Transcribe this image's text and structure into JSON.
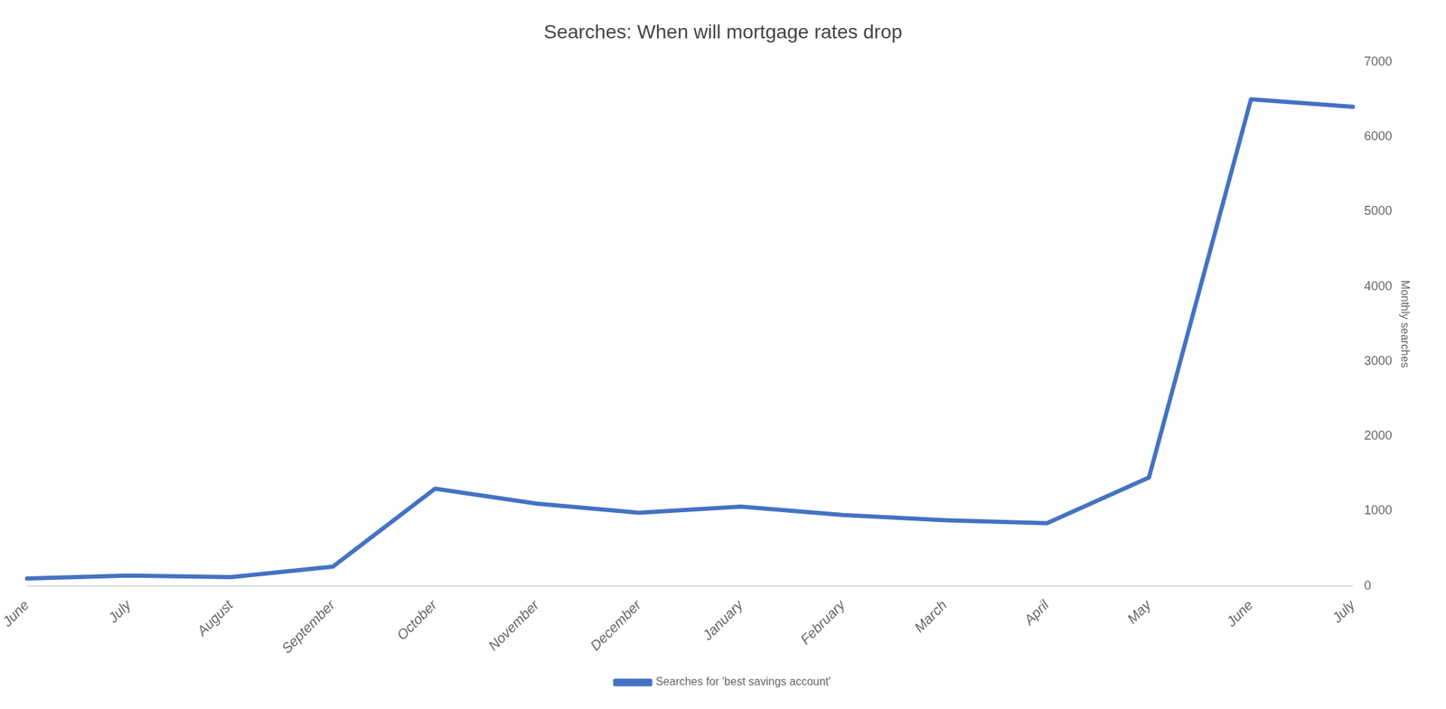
{
  "chart_data": {
    "type": "line",
    "title": "Searches: When will mortgage rates drop",
    "categories": [
      "June",
      "July",
      "August",
      "September",
      "October",
      "November",
      "December",
      "January",
      "February",
      "March",
      "April",
      "May",
      "June",
      "July"
    ],
    "series": [
      {
        "name": "Searches for 'best savings account'",
        "color": "#4472C4",
        "values": [
          100,
          140,
          120,
          260,
          1300,
          1100,
          980,
          1060,
          950,
          880,
          840,
          1450,
          6500,
          6400
        ]
      }
    ],
    "ylabel": "Monthly searches",
    "ylim": [
      0,
      7000
    ],
    "yticks": [
      0,
      1000,
      2000,
      3000,
      4000,
      5000,
      6000,
      7000
    ],
    "grid": false,
    "legend": "bottom"
  }
}
